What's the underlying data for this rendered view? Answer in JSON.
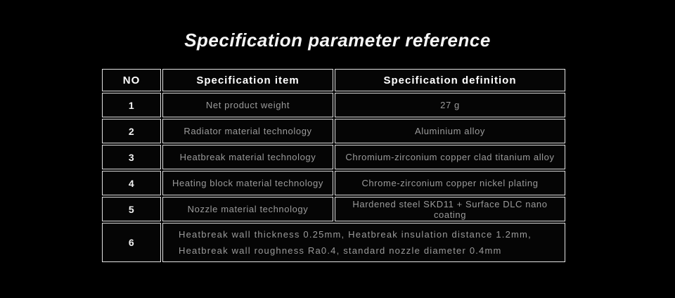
{
  "page": {
    "title": "Specification parameter reference"
  },
  "colors": {
    "background": "#000000",
    "table_border": "#e3e3e3",
    "header_text": "#ffffff",
    "body_text": "#9b9b9b"
  },
  "table": {
    "headers": [
      "NO",
      "Specification item",
      "Specification definition"
    ],
    "rows": [
      {
        "no": "1",
        "item": "Net product weight",
        "definition": "27 g"
      },
      {
        "no": "2",
        "item": "Radiator material technology",
        "definition": "Aluminium alloy"
      },
      {
        "no": "3",
        "item": "Heatbreak material technology",
        "definition": "Chromium-zirconium copper clad titanium alloy"
      },
      {
        "no": "4",
        "item": "Heating block material technology",
        "definition": "Chrome-zirconium copper nickel plating"
      },
      {
        "no": "5",
        "item": "Nozzle material technology",
        "definition": "Hardened steel SKD11 + Surface DLC nano coating"
      },
      {
        "no": "6",
        "definition": "Heatbreak wall thickness 0.25mm, Heatbreak insulation distance 1.2mm, Heatbreak wall roughness Ra0.4, standard nozzle diameter 0.4mm",
        "definition_lines": [
          "Heatbreak wall thickness 0.25mm, Heatbreak insulation distance 1.2mm,",
          "Heatbreak wall roughness Ra0.4, standard nozzle diameter 0.4mm"
        ]
      }
    ]
  }
}
